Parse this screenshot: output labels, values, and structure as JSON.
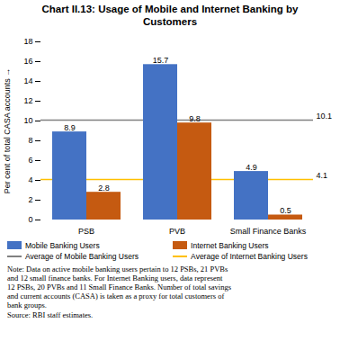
{
  "chart_data": {
    "type": "bar",
    "title": "Chart II.13: Usage of Mobile and Internet Banking by\nCustomers",
    "categories": [
      "PSB",
      "PVB",
      "Small Finance Banks"
    ],
    "series": [
      {
        "name": "Mobile Banking Users",
        "type": "bar",
        "color": "#4472C4",
        "values": [
          8.9,
          15.7,
          4.9
        ]
      },
      {
        "name": "Internet Banking Users",
        "type": "bar",
        "color": "#C55A11",
        "values": [
          2.8,
          9.8,
          0.5
        ]
      },
      {
        "name": "Average of Mobile Banking Users",
        "type": "hline",
        "color": "#808080",
        "value": 10.1
      },
      {
        "name": "Average of Internet Banking Users",
        "type": "hline",
        "color": "#FFC000",
        "value": 4.1
      }
    ],
    "ylabel": "Per cent of total CASA accounts",
    "ylim": [
      0,
      18
    ],
    "yticks": [
      0,
      2,
      4,
      6,
      8,
      10,
      12,
      14,
      16,
      18
    ],
    "data_labels": true,
    "grid": false,
    "legend": "bottom",
    "caption": "Note: Data on active mobile banking users pertain to 12 PSBs, 21 PVBs\nand 12 small finance banks. For Internet Banking users, data represent\n12 PSBs, 20 PVBs and 11 Small Finance Banks. Number of total savings\nand current accounts (CASA) is taken as a proxy for total customers of\nbank groups.\nSource: RBI staff estimates."
  }
}
